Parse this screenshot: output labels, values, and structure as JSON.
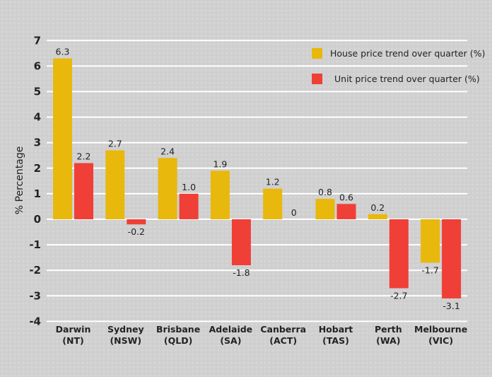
{
  "chart_data": {
    "type": "bar",
    "title": "",
    "xlabel": "",
    "ylabel": "% Percentage",
    "ylim": [
      -4,
      7
    ],
    "yticks": [
      -4,
      -3,
      -2,
      -1,
      0,
      1,
      2,
      3,
      4,
      5,
      6,
      7
    ],
    "grid": true,
    "legend_position": "top-right",
    "categories": [
      [
        "Darwin",
        "(NT)"
      ],
      [
        "Sydney",
        "(NSW)"
      ],
      [
        "Brisbane",
        "(QLD)"
      ],
      [
        "Adelaide",
        "(SA)"
      ],
      [
        "Canberra",
        "(ACT)"
      ],
      [
        "Hobart",
        "(TAS)"
      ],
      [
        "Perth",
        "(WA)"
      ],
      [
        "Melbourne",
        "(VIC)"
      ]
    ],
    "series": [
      {
        "name": "House price trend over quarter (%)",
        "color": "#e8b80c",
        "values": [
          6.3,
          2.7,
          2.4,
          1.9,
          1.2,
          0.8,
          0.2,
          -1.7
        ],
        "labels": [
          "6.3",
          "2.7",
          "2.4",
          "1.9",
          "1.2",
          "0.8",
          "0.2",
          "-1.7"
        ]
      },
      {
        "name": "Unit price trend over quarter (%)",
        "color": "#ef3f36",
        "values": [
          2.2,
          -0.2,
          1.0,
          -1.8,
          0,
          0.6,
          -2.7,
          -3.1
        ],
        "labels": [
          "2.2",
          "-0.2",
          "1.0",
          "-1.8",
          "0",
          "0.6",
          "-2.7",
          "-3.1"
        ]
      }
    ]
  }
}
